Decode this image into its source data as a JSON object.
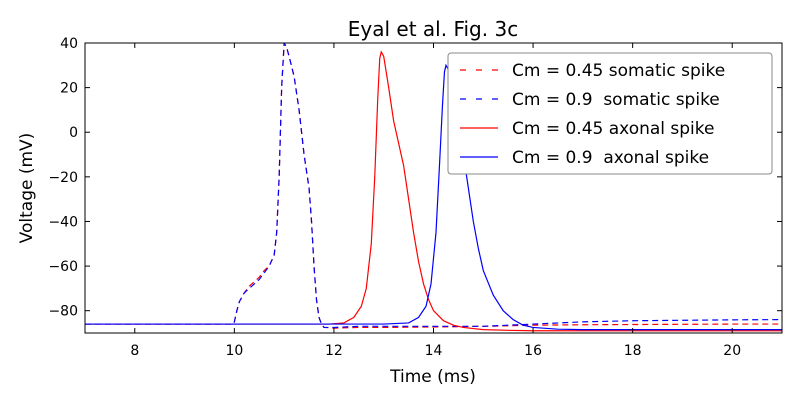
{
  "chart_data": {
    "type": "line",
    "title": "Eyal et al. Fig. 3c",
    "xlabel": "Time (ms)",
    "ylabel": "Voltage (mV)",
    "xlim": [
      7,
      21
    ],
    "ylim": [
      -90,
      40
    ],
    "xticks": [
      8,
      10,
      12,
      14,
      16,
      18,
      20
    ],
    "yticks": [
      -80,
      -60,
      -40,
      -20,
      0,
      20,
      40
    ],
    "xtick_labels": [
      "8",
      "10",
      "12",
      "14",
      "16",
      "18",
      "20"
    ],
    "ytick_labels": [
      "−80",
      "−60",
      "−40",
      "−20",
      "0",
      "20",
      "40"
    ],
    "grid": false,
    "legend": "top-right",
    "series": [
      {
        "name": "Cm = 0.45 somatic spike",
        "color": "#ff0000",
        "dash": "dashed",
        "x": [
          7,
          9.98,
          10.0,
          10.05,
          10.1,
          10.2,
          10.3,
          10.4,
          10.5,
          10.6,
          10.7,
          10.8,
          10.85,
          10.9,
          10.95,
          11.0,
          11.05,
          11.1,
          11.2,
          11.3,
          11.4,
          11.5,
          11.55,
          11.6,
          11.65,
          11.7,
          11.75,
          11.8,
          12.0,
          12.5,
          13.0,
          14.0,
          15.0,
          16.0,
          17.0,
          18.0,
          19.0,
          20.0,
          21.0
        ],
        "y": [
          -86,
          -86,
          -85,
          -80,
          -76,
          -72,
          -69,
          -67,
          -65,
          -62,
          -60,
          -55,
          -45,
          -20,
          20,
          40,
          38,
          34,
          25,
          10,
          -10,
          -25,
          -40,
          -60,
          -75,
          -83,
          -86,
          -87.5,
          -87.8,
          -87.5,
          -87.5,
          -87.3,
          -87.0,
          -86.5,
          -86.3,
          -86.2,
          -86.1,
          -86.0,
          -86.0
        ]
      },
      {
        "name": "Cm = 0.9  somatic spike",
        "color": "#0000ff",
        "dash": "dashed",
        "x": [
          7,
          9.98,
          10.0,
          10.05,
          10.1,
          10.2,
          10.3,
          10.4,
          10.5,
          10.6,
          10.7,
          10.8,
          10.85,
          10.9,
          10.95,
          11.0,
          11.05,
          11.1,
          11.2,
          11.3,
          11.4,
          11.5,
          11.55,
          11.6,
          11.65,
          11.7,
          11.75,
          11.8,
          12.0,
          12.5,
          13.0,
          14.0,
          15.0,
          16.0,
          17.0,
          18.0,
          19.0,
          20.0,
          21.0
        ],
        "y": [
          -86,
          -86,
          -85,
          -80,
          -76,
          -72,
          -70,
          -68,
          -66,
          -63,
          -60,
          -55,
          -45,
          -20,
          20,
          40,
          38,
          34,
          25,
          10,
          -10,
          -25,
          -40,
          -60,
          -75,
          -83,
          -86,
          -87.5,
          -87.5,
          -87.0,
          -87.0,
          -87.0,
          -87.0,
          -86.0,
          -85.0,
          -84.5,
          -84.3,
          -84.1,
          -84.0
        ]
      },
      {
        "name": "Cm = 0.45 axonal spike",
        "color": "#ff0000",
        "dash": "solid",
        "x": [
          7,
          11.6,
          11.9,
          12.2,
          12.4,
          12.55,
          12.65,
          12.75,
          12.82,
          12.88,
          12.92,
          12.95,
          13.0,
          13.1,
          13.2,
          13.3,
          13.4,
          13.5,
          13.6,
          13.7,
          13.8,
          13.9,
          14.0,
          14.2,
          14.4,
          14.6,
          14.8,
          15.0,
          15.5,
          16.0,
          17.0,
          18.0,
          19.0,
          20.0,
          21.0
        ],
        "y": [
          -86,
          -86,
          -86,
          -85.5,
          -83,
          -78,
          -70,
          -50,
          -20,
          15,
          33,
          36,
          34,
          20,
          5,
          -5,
          -15,
          -30,
          -45,
          -58,
          -68,
          -75,
          -80,
          -84.5,
          -86.5,
          -87.5,
          -88.0,
          -88.5,
          -88.8,
          -89.0,
          -89.0,
          -89.0,
          -89.0,
          -89.0,
          -89.0
        ]
      },
      {
        "name": "Cm = 0.9  axonal spike",
        "color": "#0000ff",
        "dash": "solid",
        "x": [
          7,
          12.0,
          13.0,
          13.5,
          13.7,
          13.85,
          13.95,
          14.05,
          14.12,
          14.18,
          14.22,
          14.25,
          14.3,
          14.4,
          14.5,
          14.6,
          14.7,
          14.8,
          14.9,
          15.0,
          15.2,
          15.4,
          15.6,
          15.8,
          16.0,
          16.5,
          17.0,
          18.0,
          19.0,
          20.0,
          21.0
        ],
        "y": [
          -86,
          -86,
          -86,
          -85.5,
          -83,
          -78,
          -68,
          -45,
          -15,
          12,
          27,
          30,
          28,
          18,
          5,
          -10,
          -25,
          -40,
          -52,
          -62,
          -73,
          -80,
          -84,
          -86.5,
          -87.5,
          -88.3,
          -88.5,
          -88.5,
          -88.5,
          -88.5,
          -88.5
        ]
      }
    ]
  }
}
